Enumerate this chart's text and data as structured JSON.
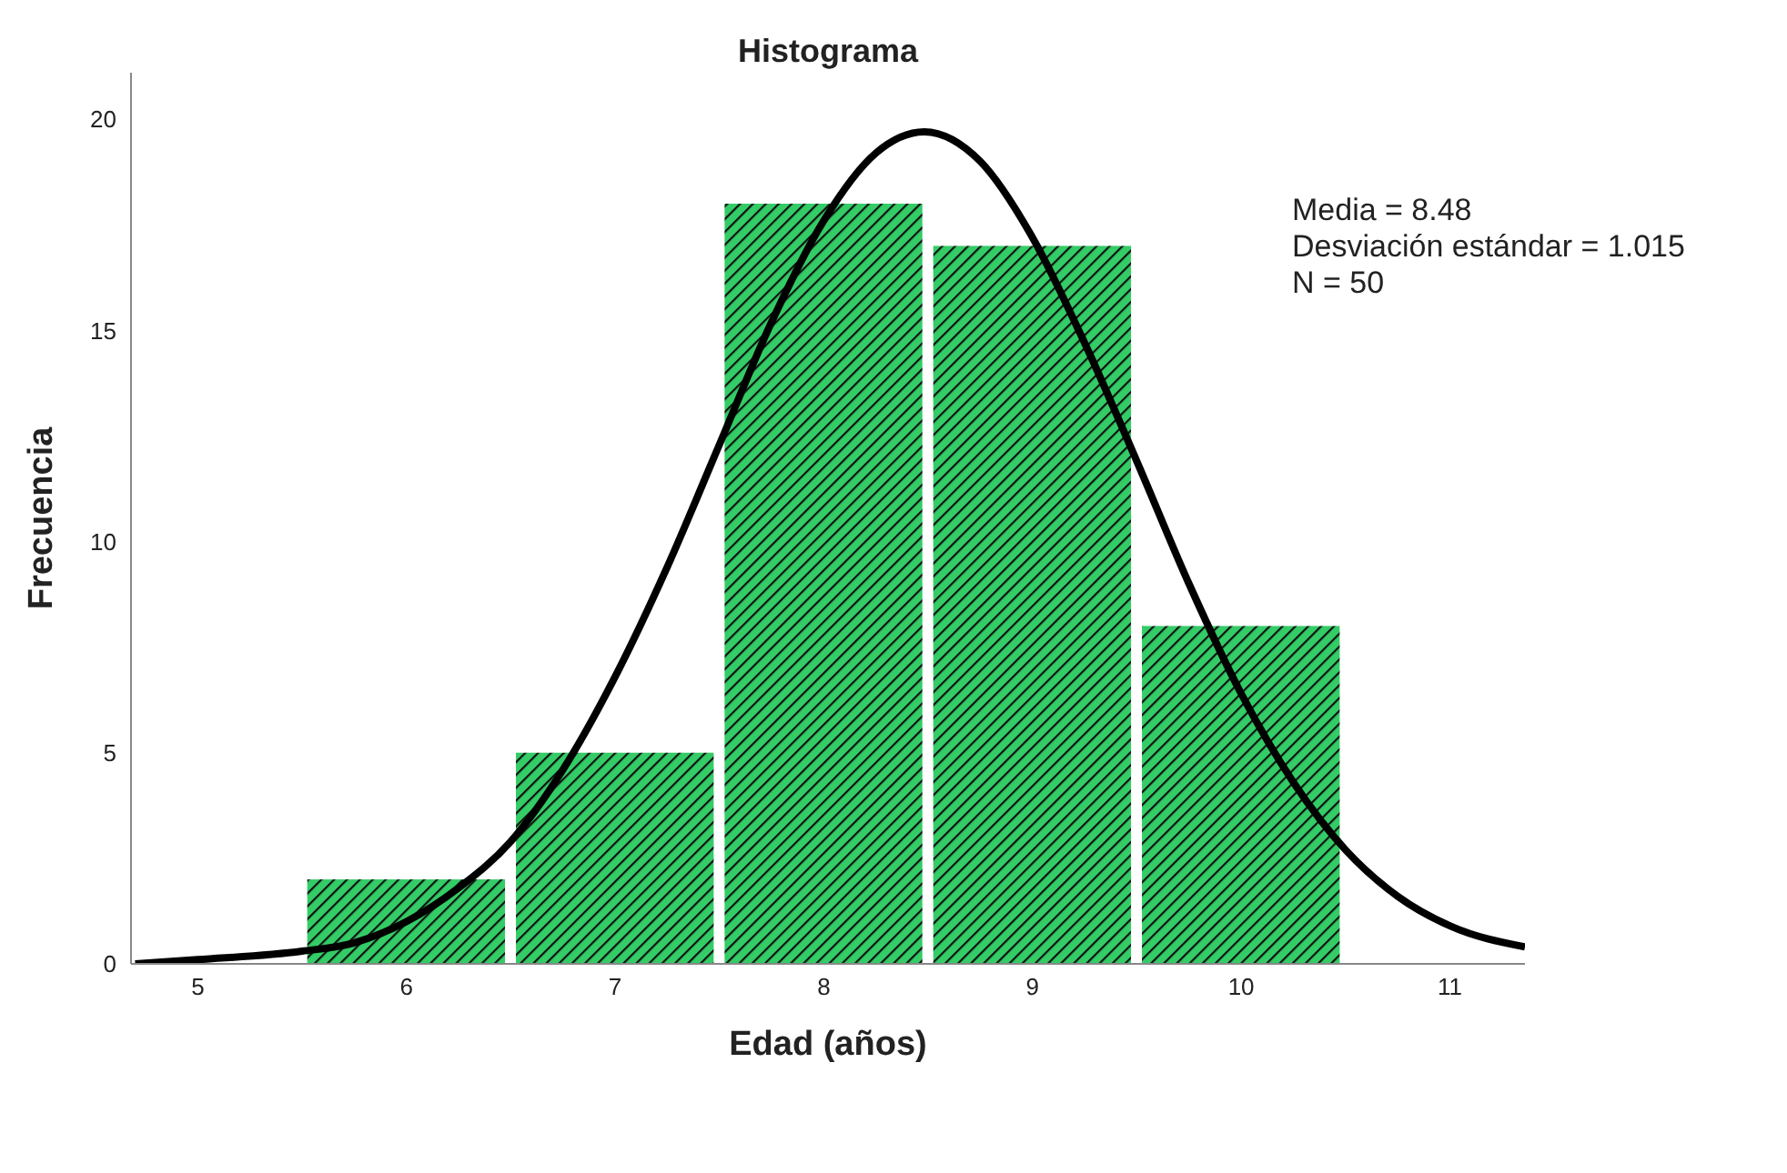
{
  "chart_data": {
    "type": "histogram",
    "title": "Histograma",
    "xlabel": "Edad (años)",
    "ylabel": "Frecuencia",
    "bins": [
      5.5,
      6.5,
      7.5,
      8.5,
      9.5,
      10.5
    ],
    "values": [
      2,
      5,
      18,
      17,
      8
    ],
    "color": "#33cc66",
    "series": [
      {
        "type": "line",
        "color": "#000000",
        "x": [
          4.7,
          5.0,
          5.5,
          5.75,
          6.0,
          6.25,
          6.5,
          6.75,
          7.0,
          7.25,
          7.5,
          7.75,
          8.0,
          8.25,
          8.48,
          8.75,
          9.0,
          9.25,
          9.5,
          9.75,
          10.0,
          10.25,
          10.5,
          10.75,
          11.0,
          11.36
        ],
        "values": [
          0.0,
          0.1,
          0.3,
          0.5,
          1.0,
          1.8,
          2.9,
          4.6,
          6.8,
          9.4,
          12.3,
          15.2,
          17.6,
          19.2,
          19.7,
          19.0,
          17.2,
          14.7,
          11.9,
          9.0,
          6.4,
          4.3,
          2.7,
          1.6,
          0.9,
          0.4
        ]
      }
    ],
    "xlim": [
      4.68,
      11.36
    ],
    "xticks": [
      5,
      6,
      7,
      8,
      9,
      10,
      11
    ],
    "ylim": [
      0,
      21.1
    ],
    "yticks": [
      0,
      5,
      10,
      15,
      20
    ],
    "marker": "none",
    "line_style": "solid",
    "annotations": [
      "Media = 8.48",
      "Desviación estándar = 1.015",
      "N = 50"
    ]
  }
}
